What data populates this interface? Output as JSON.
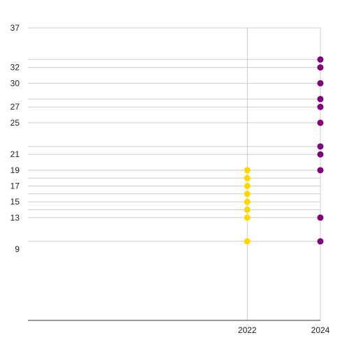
{
  "chart_data": {
    "type": "scatter",
    "title": "",
    "xlabel": "",
    "ylabel": "",
    "x_ticks": [
      2022,
      2024
    ],
    "y_ticks": [
      9,
      13,
      15,
      17,
      19,
      21,
      25,
      27,
      30,
      32,
      37
    ],
    "y_gridlines": [
      10,
      13,
      14,
      15,
      16,
      17,
      18,
      19,
      21,
      22,
      25,
      27,
      28,
      30,
      32,
      33,
      37
    ],
    "xlim": [
      2016,
      2024
    ],
    "ylim": [
      0,
      37
    ],
    "grid": true,
    "legend": "none",
    "series": [
      {
        "color": "#FFD700",
        "points": [
          {
            "x": 2022,
            "y": 10
          },
          {
            "x": 2022,
            "y": 13
          },
          {
            "x": 2022,
            "y": 14
          },
          {
            "x": 2022,
            "y": 15
          },
          {
            "x": 2022,
            "y": 16
          },
          {
            "x": 2022,
            "y": 17
          },
          {
            "x": 2022,
            "y": 18
          },
          {
            "x": 2022,
            "y": 19
          }
        ]
      },
      {
        "color": "#800080",
        "points": [
          {
            "x": 2024,
            "y": 10
          },
          {
            "x": 2024,
            "y": 13
          },
          {
            "x": 2024,
            "y": 19
          },
          {
            "x": 2024,
            "y": 21
          },
          {
            "x": 2024,
            "y": 22
          },
          {
            "x": 2024,
            "y": 25
          },
          {
            "x": 2024,
            "y": 27
          },
          {
            "x": 2024,
            "y": 28
          },
          {
            "x": 2024,
            "y": 30
          },
          {
            "x": 2024,
            "y": 32
          },
          {
            "x": 2024,
            "y": 33
          }
        ]
      }
    ]
  }
}
